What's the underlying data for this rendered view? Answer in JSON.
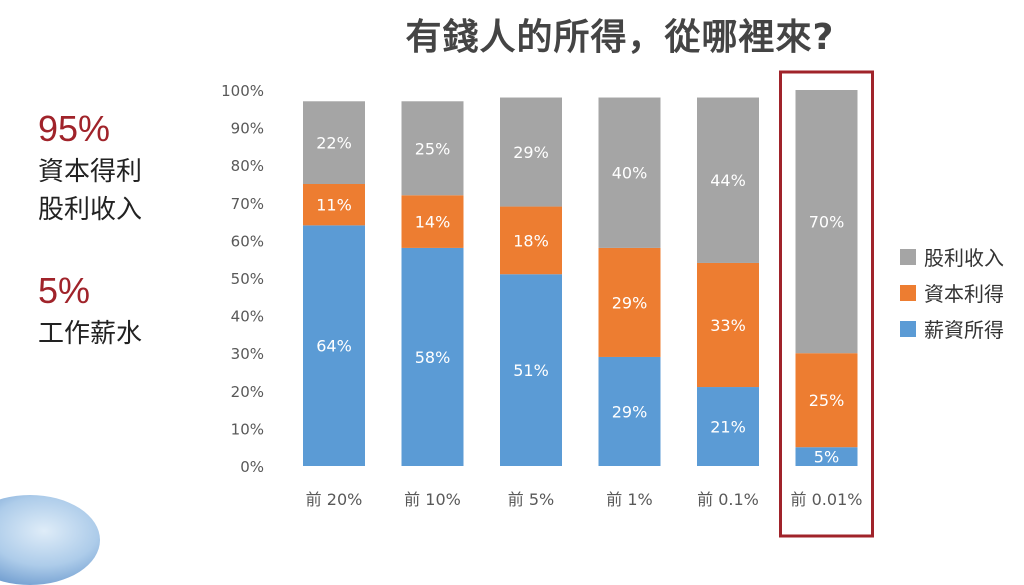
{
  "title": "有錢人的所得，從哪裡來?",
  "side": {
    "pct_capital": "95%",
    "line1": "資本得利",
    "line2": "股利收入",
    "pct_wage": "5%",
    "line3": "工作薪水"
  },
  "chart_data": {
    "type": "bar",
    "stacked": true,
    "categories": [
      "前 20%",
      "前 10%",
      "前 5%",
      "前 1%",
      "前 0.1%",
      "前 0.01%"
    ],
    "series": [
      {
        "name": "薪資所得",
        "values": [
          64,
          58,
          51,
          29,
          21,
          5
        ],
        "labels": [
          "64%",
          "58%",
          "51%",
          "29%",
          "21%",
          "5%"
        ],
        "color": "#5b9bd5"
      },
      {
        "name": "資本利得",
        "values": [
          11,
          14,
          18,
          29,
          33,
          25
        ],
        "labels": [
          "11%",
          "14%",
          "18%",
          "29%",
          "33%",
          "25%"
        ],
        "color": "#ed7d31"
      },
      {
        "name": "股利收入",
        "values": [
          22,
          25,
          29,
          40,
          44,
          70
        ],
        "labels": [
          "22%",
          "25%",
          "29%",
          "40%",
          "44%",
          "70%"
        ],
        "color": "#a5a5a5"
      }
    ],
    "ylim": [
      0,
      100
    ],
    "yticks": [
      "0%",
      "10%",
      "20%",
      "30%",
      "40%",
      "50%",
      "60%",
      "70%",
      "80%",
      "90%",
      "100%"
    ],
    "legend_position": "right",
    "legend_order": [
      "股利收入",
      "資本利得",
      "薪資所得"
    ],
    "highlight_category": "前 0.01%",
    "highlight_color": "#a0232a",
    "grid": false
  }
}
